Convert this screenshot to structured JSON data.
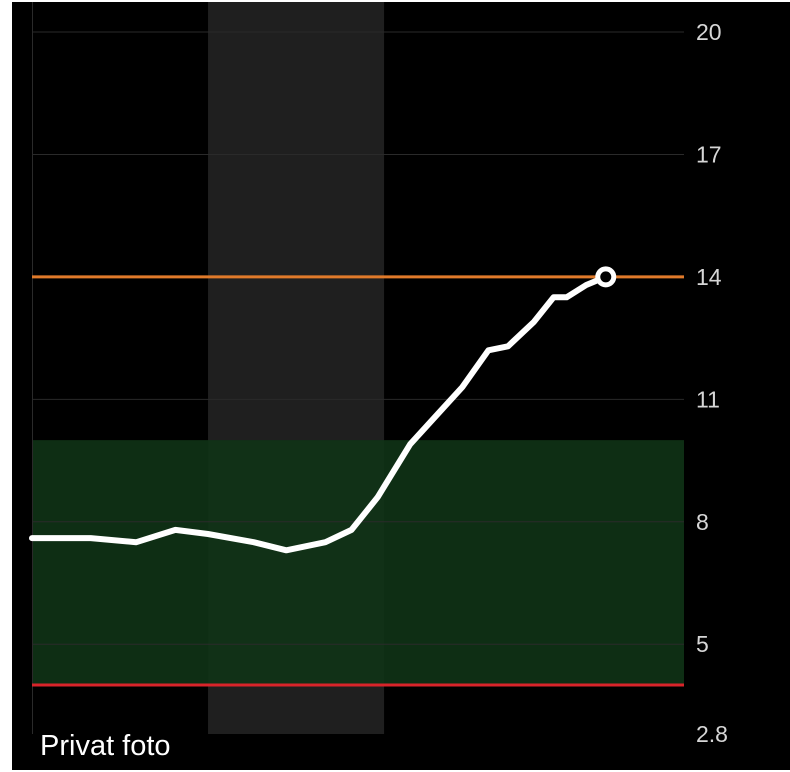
{
  "caption": "Privat foto",
  "colors": {
    "background": "#000000",
    "grid": "#2a2a2a",
    "highlight_band": "#1f1f1f",
    "target_range": "#0f3316",
    "high_threshold": "#e07a2a",
    "low_threshold": "#d8242a",
    "line": "#ffffff",
    "tick_text": "#d6d6d6"
  },
  "chart_data": {
    "type": "line",
    "title": "",
    "xlabel": "",
    "ylabel": "",
    "y_axis_position": "right",
    "y_ticks": [
      "20",
      "17",
      "14",
      "11",
      "8",
      "5",
      "2.8"
    ],
    "ylim": [
      2.8,
      20
    ],
    "grid": true,
    "target_range": [
      4,
      10
    ],
    "high_threshold": 14,
    "low_threshold": 4,
    "highlight_band_x": [
      0.27,
      0.54
    ],
    "series": [
      {
        "x": [
          0,
          0.09,
          0.16,
          0.22,
          0.27,
          0.34,
          0.39,
          0.45,
          0.49,
          0.53,
          0.58,
          0.62,
          0.66,
          0.7,
          0.73,
          0.77,
          0.8,
          0.82,
          0.85,
          0.88
        ],
        "values": [
          7.6,
          7.6,
          7.5,
          7.8,
          7.7,
          7.5,
          7.3,
          7.5,
          7.8,
          8.6,
          9.9,
          10.6,
          11.3,
          12.2,
          12.3,
          12.9,
          13.5,
          13.5,
          13.8,
          14.0
        ]
      }
    ],
    "current_marker": {
      "x": 0.88,
      "value": 14.0
    }
  }
}
